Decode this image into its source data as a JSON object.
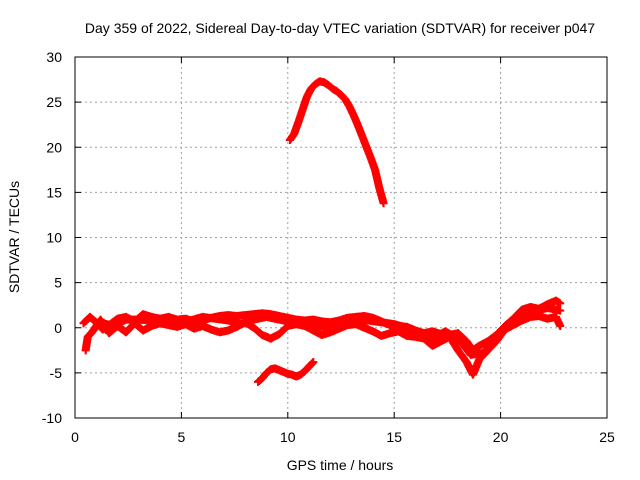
{
  "chart_data": {
    "type": "scatter",
    "title": "Day 359 of 2022, Sidereal Day-to-day VTEC variation (SDTVAR) for receiver p047",
    "xlabel": "GPS time / hours",
    "ylabel": "SDTVAR / TECUs",
    "xlim": [
      0,
      25
    ],
    "ylim": [
      -10,
      30
    ],
    "xticks": [
      0,
      5,
      10,
      15,
      20,
      25
    ],
    "yticks": [
      -10,
      -5,
      0,
      5,
      10,
      15,
      20,
      25,
      30
    ],
    "grid": true,
    "legend": null,
    "series_color": "#ff0000",
    "marker": "plus",
    "series": [
      {
        "name": "main-band-a",
        "points": [
          [
            0.4,
            0.5
          ],
          [
            0.7,
            1.2
          ],
          [
            1.0,
            0.6
          ],
          [
            1.3,
            -0.2
          ],
          [
            1.6,
            0.3
          ],
          [
            2.0,
            1.0
          ],
          [
            2.4,
            1.2
          ],
          [
            2.8,
            0.7
          ],
          [
            3.2,
            1.5
          ],
          [
            3.6,
            1.2
          ],
          [
            4.0,
            1.0
          ],
          [
            4.4,
            1.2
          ],
          [
            4.8,
            0.9
          ],
          [
            5.2,
            1.0
          ],
          [
            5.6,
            0.7
          ],
          [
            6.0,
            0.8
          ],
          [
            6.4,
            1.1
          ],
          [
            6.8,
            1.3
          ],
          [
            7.2,
            1.4
          ],
          [
            7.6,
            1.3
          ],
          [
            8.0,
            1.4
          ],
          [
            8.4,
            1.5
          ],
          [
            8.8,
            1.6
          ],
          [
            9.2,
            1.5
          ],
          [
            9.6,
            1.3
          ],
          [
            10.0,
            1.1
          ],
          [
            10.4,
            0.9
          ],
          [
            10.8,
            0.8
          ],
          [
            11.2,
            0.9
          ],
          [
            11.6,
            0.7
          ],
          [
            12.0,
            0.6
          ],
          [
            12.4,
            0.8
          ],
          [
            12.8,
            1.1
          ],
          [
            13.2,
            1.2
          ],
          [
            13.6,
            1.3
          ],
          [
            14.0,
            1.1
          ],
          [
            14.4,
            0.7
          ],
          [
            14.8,
            0.3
          ],
          [
            15.2,
            0.2
          ],
          [
            15.6,
            0.1
          ],
          [
            16.0,
            -0.3
          ],
          [
            16.4,
            -0.6
          ],
          [
            16.8,
            -0.4
          ],
          [
            17.2,
            -0.7
          ],
          [
            17.6,
            -0.8
          ],
          [
            18.0,
            -0.6
          ],
          [
            18.4,
            -1.5
          ],
          [
            18.7,
            -2.5
          ],
          [
            19.0,
            -2.0
          ],
          [
            19.4,
            -1.5
          ],
          [
            19.8,
            -0.8
          ],
          [
            20.2,
            0.2
          ],
          [
            20.6,
            1.0
          ],
          [
            21.0,
            2.0
          ],
          [
            21.4,
            2.3
          ],
          [
            21.8,
            2.1
          ],
          [
            22.2,
            2.6
          ],
          [
            22.6,
            3.0
          ],
          [
            22.8,
            2.7
          ]
        ]
      },
      {
        "name": "main-band-b",
        "points": [
          [
            0.5,
            -2.5
          ],
          [
            0.6,
            -1.0
          ],
          [
            0.8,
            -0.5
          ],
          [
            1.2,
            0.9
          ],
          [
            1.6,
            -0.6
          ],
          [
            2.0,
            0.2
          ],
          [
            2.4,
            -0.5
          ],
          [
            2.8,
            0.5
          ],
          [
            3.2,
            -0.3
          ],
          [
            3.6,
            0.2
          ],
          [
            4.0,
            0.5
          ],
          [
            4.4,
            0.3
          ],
          [
            4.8,
            0.1
          ],
          [
            5.2,
            0.4
          ],
          [
            5.6,
            -0.1
          ],
          [
            6.0,
            0.2
          ],
          [
            6.4,
            -0.2
          ],
          [
            6.8,
            -0.5
          ],
          [
            7.2,
            -0.3
          ],
          [
            7.6,
            0.1
          ],
          [
            8.0,
            0.6
          ],
          [
            8.4,
            0.0
          ],
          [
            8.8,
            -0.8
          ],
          [
            9.2,
            -1.2
          ],
          [
            9.6,
            -0.7
          ],
          [
            10.0,
            0.2
          ],
          [
            10.4,
            0.4
          ],
          [
            10.8,
            0.2
          ],
          [
            11.2,
            -0.3
          ],
          [
            11.6,
            -0.8
          ],
          [
            12.0,
            -0.5
          ],
          [
            12.4,
            -0.1
          ],
          [
            12.8,
            0.3
          ],
          [
            13.2,
            0.4
          ],
          [
            13.6,
            0.0
          ],
          [
            14.0,
            -0.4
          ],
          [
            14.4,
            -0.9
          ],
          [
            14.8,
            -0.6
          ],
          [
            15.2,
            -0.4
          ],
          [
            15.6,
            -0.9
          ],
          [
            16.0,
            -1.0
          ],
          [
            16.4,
            -1.2
          ],
          [
            16.8,
            -2.0
          ],
          [
            17.2,
            -1.5
          ],
          [
            17.6,
            -1.0
          ],
          [
            18.0,
            -2.5
          ],
          [
            18.4,
            -3.8
          ],
          [
            18.7,
            -5.2
          ],
          [
            19.0,
            -3.5
          ],
          [
            19.4,
            -2.5
          ],
          [
            19.8,
            -1.5
          ],
          [
            20.2,
            -0.2
          ],
          [
            20.6,
            0.3
          ],
          [
            21.0,
            0.8
          ],
          [
            21.4,
            1.2
          ],
          [
            21.8,
            1.3
          ],
          [
            22.2,
            1.0
          ],
          [
            22.6,
            1.2
          ],
          [
            22.8,
            0.2
          ]
        ]
      },
      {
        "name": "main-band-c",
        "points": [
          [
            1.2,
            0.6
          ],
          [
            1.8,
            0.2
          ],
          [
            2.4,
            0.9
          ],
          [
            3.0,
            0.9
          ],
          [
            3.6,
            0.8
          ],
          [
            4.2,
            0.9
          ],
          [
            4.8,
            0.6
          ],
          [
            5.4,
            0.8
          ],
          [
            6.0,
            1.2
          ],
          [
            6.6,
            1.0
          ],
          [
            7.2,
            0.8
          ],
          [
            7.8,
            0.4
          ],
          [
            8.4,
            0.9
          ],
          [
            9.0,
            1.2
          ],
          [
            9.6,
            0.9
          ],
          [
            10.2,
            0.6
          ],
          [
            10.8,
            0.5
          ],
          [
            11.4,
            0.2
          ],
          [
            12.0,
            0.0
          ],
          [
            12.6,
            0.2
          ],
          [
            13.2,
            0.7
          ],
          [
            13.8,
            0.8
          ],
          [
            14.4,
            0.6
          ],
          [
            15.0,
            0.4
          ],
          [
            15.6,
            0.0
          ],
          [
            16.2,
            -0.8
          ],
          [
            16.8,
            -1.2
          ],
          [
            17.4,
            -0.4
          ],
          [
            18.0,
            -1.2
          ],
          [
            18.6,
            -3.0
          ],
          [
            19.2,
            -2.8
          ],
          [
            19.8,
            -1.0
          ],
          [
            20.4,
            0.5
          ],
          [
            21.0,
            1.5
          ],
          [
            21.6,
            1.8
          ],
          [
            22.2,
            2.2
          ],
          [
            22.8,
            1.9
          ]
        ]
      },
      {
        "name": "afternoon-arc",
        "points": [
          [
            10.1,
            20.8
          ],
          [
            10.3,
            21.5
          ],
          [
            10.5,
            22.8
          ],
          [
            10.7,
            24.2
          ],
          [
            10.9,
            25.6
          ],
          [
            11.1,
            26.5
          ],
          [
            11.3,
            27.0
          ],
          [
            11.5,
            27.3
          ],
          [
            11.7,
            27.2
          ],
          [
            11.9,
            26.9
          ],
          [
            12.1,
            26.5
          ],
          [
            12.3,
            26.2
          ],
          [
            12.5,
            25.8
          ],
          [
            12.7,
            25.3
          ],
          [
            12.9,
            24.5
          ],
          [
            13.1,
            23.5
          ],
          [
            13.3,
            22.4
          ],
          [
            13.5,
            21.2
          ],
          [
            13.7,
            20.0
          ],
          [
            13.9,
            18.8
          ],
          [
            14.1,
            17.5
          ],
          [
            14.3,
            15.5
          ],
          [
            14.5,
            13.8
          ]
        ]
      },
      {
        "name": "dip-segment",
        "points": [
          [
            8.6,
            -6.0
          ],
          [
            8.8,
            -5.6
          ],
          [
            9.0,
            -5.0
          ],
          [
            9.2,
            -4.6
          ],
          [
            9.4,
            -4.5
          ],
          [
            9.6,
            -4.7
          ],
          [
            9.8,
            -4.9
          ],
          [
            10.0,
            -5.1
          ],
          [
            10.2,
            -5.2
          ],
          [
            10.4,
            -5.4
          ],
          [
            10.6,
            -5.2
          ],
          [
            10.8,
            -4.8
          ],
          [
            11.0,
            -4.3
          ],
          [
            11.2,
            -3.8
          ]
        ]
      }
    ]
  }
}
